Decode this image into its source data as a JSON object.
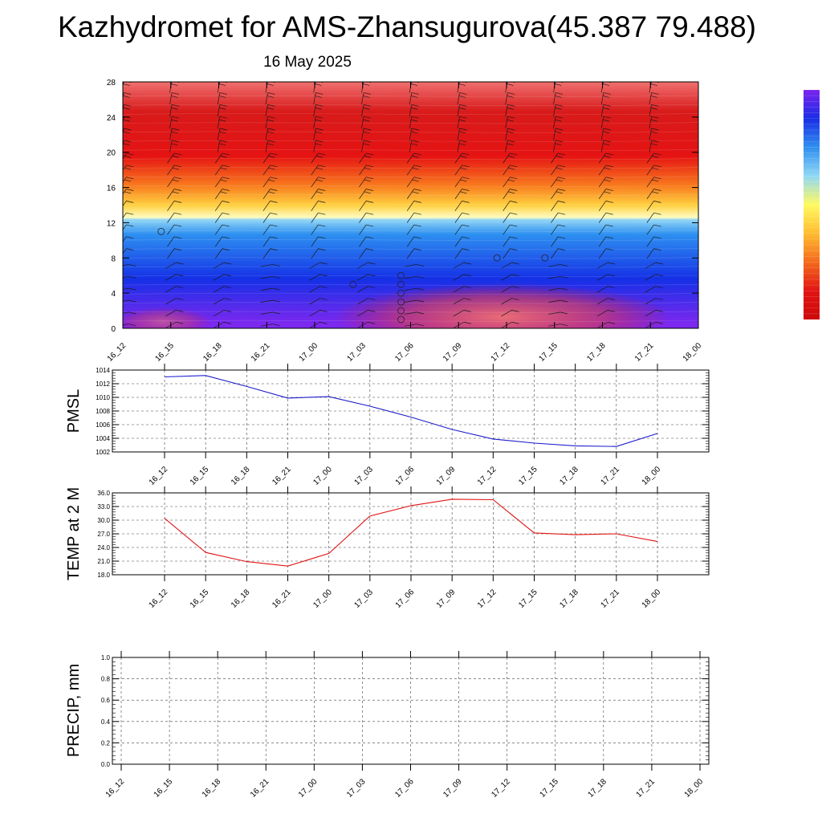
{
  "page": {
    "title": "Kazhydromet for AMS-Zhansugurova(45.387 79.488)",
    "date": "16 May 2025"
  },
  "chart_data": [
    {
      "type": "heatmap",
      "name": "vertical-profile",
      "x_ticks": [
        "16_12",
        "16_15",
        "16_18",
        "16_21",
        "17_00",
        "17_03",
        "17_06",
        "17_09",
        "17_12",
        "17_15",
        "17_18",
        "17_21",
        "18_00"
      ],
      "y_ticks": [
        "0",
        "4",
        "8",
        "12",
        "16",
        "20",
        "24",
        "28"
      ],
      "ylim": [
        0,
        28
      ],
      "colors": [
        "#7b28ef",
        "#1530e6",
        "#2d8ff0",
        "#8fd4f5",
        "#fffcc0",
        "#ffd040",
        "#f87a1e",
        "#e51313",
        "#d81a1a",
        "#f07070"
      ],
      "colorbar_colors": [
        "#7a22ee",
        "#1a2ee5",
        "#2f8ff0",
        "#90d8f5",
        "#fffa60",
        "#ffbc30",
        "#f46a1c",
        "#e21414",
        "#cc0a0a"
      ],
      "circles": [
        [
          0.8,
          11
        ],
        [
          4.8,
          5
        ],
        [
          5.8,
          1
        ],
        [
          5.8,
          2
        ],
        [
          5.8,
          3
        ],
        [
          5.8,
          4
        ],
        [
          5.8,
          5
        ],
        [
          5.8,
          6
        ],
        [
          7.8,
          8
        ],
        [
          8.8,
          8
        ]
      ]
    },
    {
      "type": "line",
      "name": "pmsl",
      "ylabel": "PMSL",
      "x_ticks": [
        "16_12",
        "16_15",
        "16_18",
        "16_21",
        "17_00",
        "17_03",
        "17_06",
        "17_09",
        "17_12",
        "17_15",
        "17_18",
        "17_21",
        "18_00"
      ],
      "y_ticks": [
        "1002",
        "1004",
        "1006",
        "1008",
        "1010",
        "1012",
        "1014"
      ],
      "ylim": [
        1002,
        1014
      ],
      "color": "#1c1ccc",
      "values": [
        1013.0,
        1013.2,
        1011.6,
        1009.9,
        1010.1,
        1008.7,
        1007.1,
        1005.3,
        1003.9,
        1003.3,
        1002.9,
        1002.8,
        1004.7
      ]
    },
    {
      "type": "line",
      "name": "temp",
      "ylabel": "TEMP at 2 M",
      "x_ticks": [
        "16_12",
        "16_15",
        "16_18",
        "16_21",
        "17_00",
        "17_03",
        "17_06",
        "17_09",
        "17_12",
        "17_15",
        "17_18",
        "17_21",
        "18_00"
      ],
      "y_ticks": [
        "18.0",
        "21.0",
        "24.0",
        "27.0",
        "30.0",
        "33.0",
        "36.0"
      ],
      "ylim": [
        18,
        36
      ],
      "color": "#e01414",
      "values": [
        30.4,
        22.9,
        20.9,
        19.9,
        22.7,
        30.9,
        33.2,
        34.6,
        34.5,
        27.2,
        26.8,
        27.0,
        25.3
      ]
    },
    {
      "type": "line",
      "name": "precip",
      "ylabel": "PRECIP, mm",
      "x_ticks": [
        "16_12",
        "16_15",
        "16_18",
        "16_21",
        "17_00",
        "17_03",
        "17_06",
        "17_09",
        "17_12",
        "17_15",
        "17_18",
        "17_21",
        "18_00"
      ],
      "y_ticks": [
        "0.0",
        "0.2",
        "0.4",
        "0.6",
        "0.8",
        "1.0"
      ],
      "ylim": [
        0,
        1
      ],
      "color": "#2e7d2e",
      "values": [
        0,
        0,
        0,
        0,
        0,
        0,
        0,
        0,
        0,
        0,
        0,
        0,
        0
      ]
    }
  ]
}
